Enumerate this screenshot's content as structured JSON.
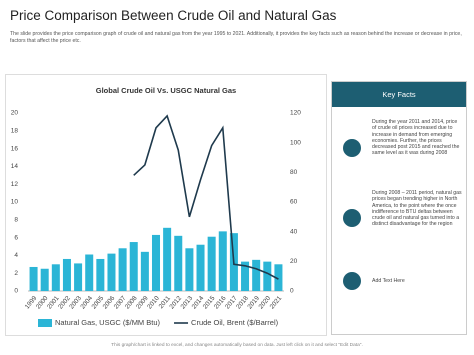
{
  "header": {
    "title": "Price Comparison Between Crude Oil and Natural Gas",
    "description": "The slide provides the price comparison graph of crude oil and natural gas from the year 1995 to 2021. Additionally, it provides the key facts such as reason behind the increase or decrease in price, factors that affect the price etc."
  },
  "chart_data": {
    "type": "bar-line",
    "title": "Global Crude Oil Vs. USGC Natural Gas",
    "categories": [
      "1999",
      "2000",
      "2001",
      "2002",
      "2003",
      "2004",
      "2005",
      "2006",
      "2007",
      "2008",
      "2009",
      "2010",
      "2011",
      "2012",
      "2013",
      "2014",
      "2015",
      "2016",
      "2017",
      "2018",
      "2019",
      "2020",
      "2021"
    ],
    "series": [
      {
        "name": "Natural Gas, USGC ($/MM Btu)",
        "color": "#2bb5d6",
        "values": [
          2.7,
          2.5,
          3.0,
          3.6,
          3.1,
          4.1,
          3.6,
          4.2,
          4.8,
          5.5,
          4.4,
          6.3,
          7.1,
          6.2,
          4.8,
          5.2,
          6.1,
          6.7,
          6.5,
          3.3,
          3.5,
          3.3,
          3.0
        ]
      },
      {
        "name": "Crude Oil, Brent ($/Barrel)",
        "color": "#1f3a4d",
        "axis": "y2",
        "values": [
          null,
          null,
          null,
          null,
          null,
          null,
          null,
          null,
          null,
          78,
          85,
          110,
          118,
          95,
          50,
          75,
          98,
          110,
          18,
          17,
          15,
          12,
          8
        ]
      }
    ],
    "ylim": [
      0,
      20
    ],
    "yticks": [
      0,
      2,
      4,
      6,
      8,
      10,
      12,
      14,
      16,
      18,
      20
    ],
    "y2lim": [
      0,
      120
    ],
    "y2ticks": [
      0,
      20,
      40,
      60,
      80,
      100,
      120
    ]
  },
  "key_facts": {
    "title": "Key Facts",
    "items": [
      "During the year 2011 and 2014, price of crude oil prices increased due to increase in demand from emerging economies. Further, the prices decreased post 2015 and reached the same level as it was during 2008",
      "During 2008 – 2011 period, natural gas prices began trending higher in North America, to the point where the once indifference to BTU deltas between crude oil and natural gas turned into a distinct disadvantage for the region",
      "Add Text Here"
    ]
  },
  "footer": "This graph/chart is linked to excel, and changes automatically based on data. Just left click on it and select \"Edit Data\"."
}
